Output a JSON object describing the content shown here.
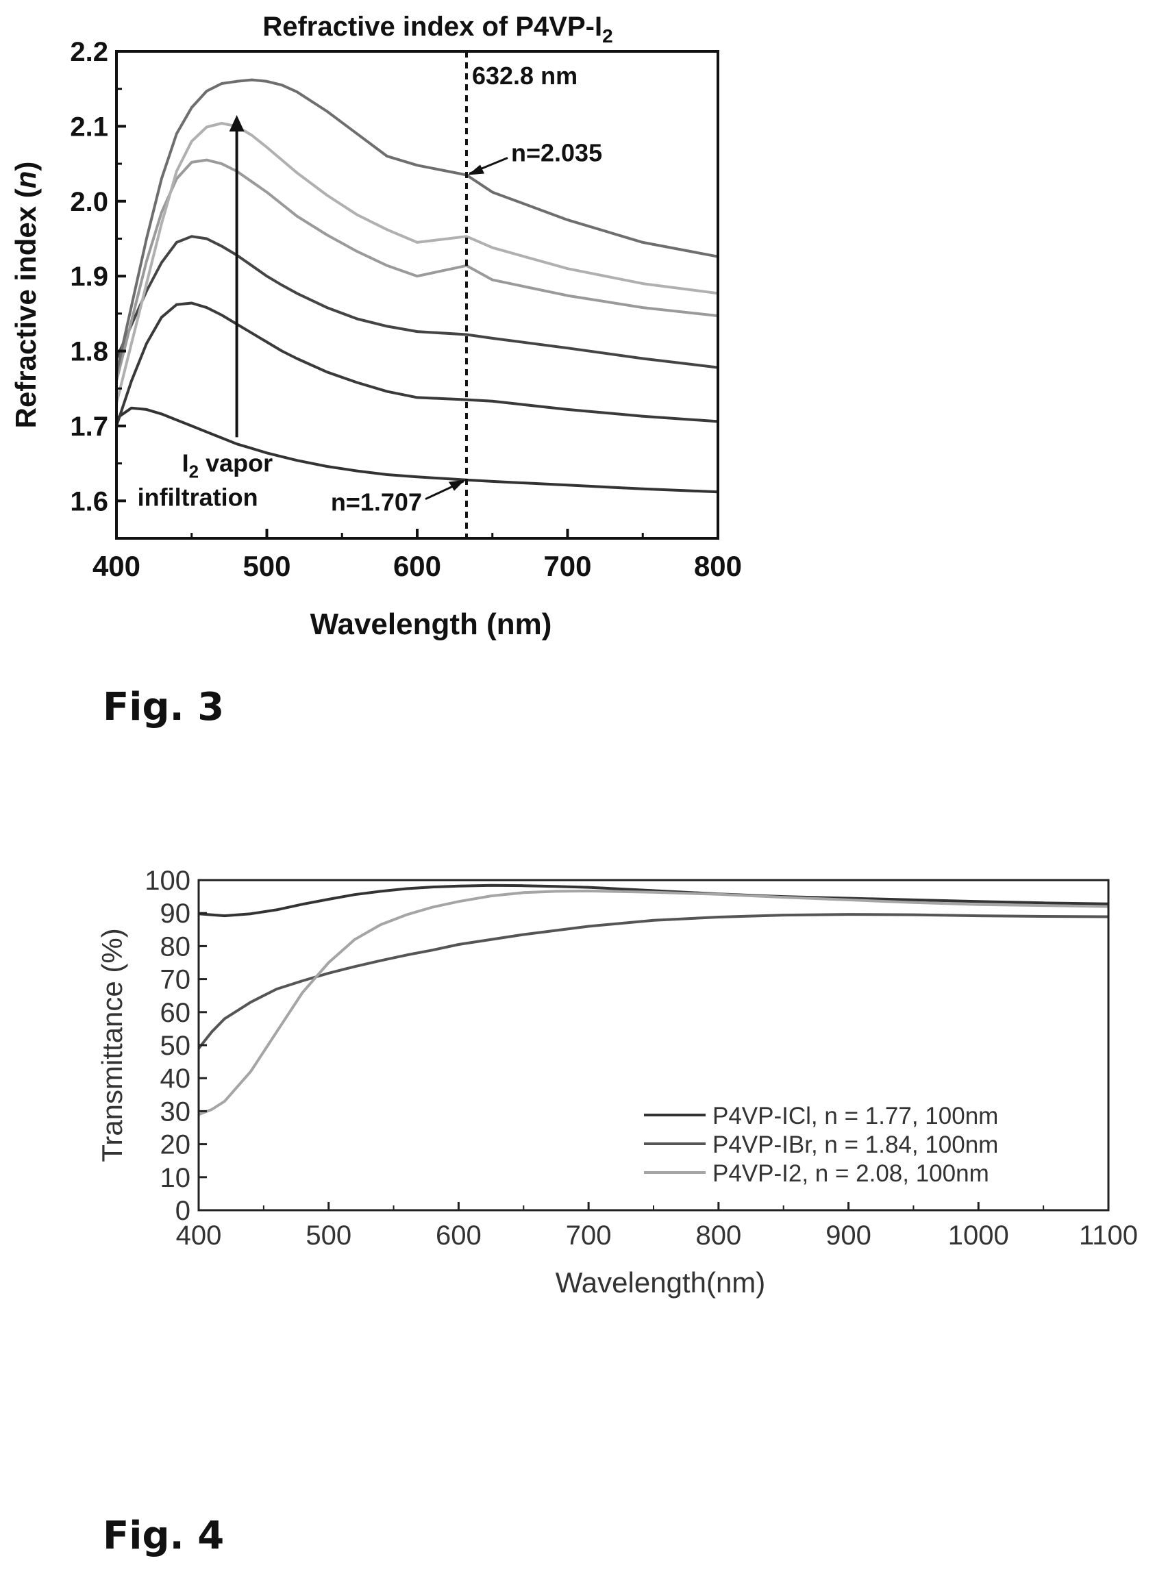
{
  "figures": [
    {
      "label": "Fig. 3"
    },
    {
      "label": "Fig. 4"
    }
  ],
  "chart_data": [
    {
      "type": "line",
      "title": "Refractive index of P4VP-I",
      "title_subscript": "2",
      "xlabel": "Wavelength (nm)",
      "ylabel": "Refractive index (",
      "ylabel_italic": "n",
      "ylabel_end": ")",
      "xlim": [
        400,
        800
      ],
      "ylim": [
        1.55,
        2.2
      ],
      "xticks": [
        "400",
        "500",
        "600",
        "700",
        "800"
      ],
      "yticks": [
        "1.6",
        "1.7",
        "1.8",
        "1.9",
        "2.0",
        "2.1",
        "2.2"
      ],
      "x": [
        400,
        410,
        420,
        430,
        440,
        450,
        460,
        470,
        480,
        490,
        500,
        510,
        520,
        540,
        560,
        580,
        600,
        632.8,
        650,
        700,
        750,
        800
      ],
      "series": [
        {
          "color": "#333333",
          "values": [
            1.71,
            1.724,
            1.722,
            1.716,
            1.708,
            1.7,
            1.692,
            1.684,
            1.676,
            1.67,
            1.664,
            1.659,
            1.654,
            1.646,
            1.64,
            1.635,
            1.632,
            1.628,
            1.626,
            1.621,
            1.616,
            1.612
          ]
        },
        {
          "color": "#3a3a3a",
          "values": [
            1.7,
            1.76,
            1.81,
            1.845,
            1.862,
            1.864,
            1.858,
            1.848,
            1.836,
            1.824,
            1.812,
            1.8,
            1.79,
            1.772,
            1.758,
            1.746,
            1.738,
            1.735,
            1.733,
            1.722,
            1.713,
            1.706
          ]
        },
        {
          "color": "#444444",
          "values": [
            1.79,
            1.835,
            1.88,
            1.918,
            1.945,
            1.953,
            1.95,
            1.94,
            1.928,
            1.914,
            1.9,
            1.888,
            1.877,
            1.858,
            1.843,
            1.833,
            1.826,
            1.822,
            1.817,
            1.804,
            1.79,
            1.778
          ]
        },
        {
          "color": "#9a9a9a",
          "values": [
            1.76,
            1.84,
            1.92,
            1.985,
            2.03,
            2.052,
            2.055,
            2.05,
            2.04,
            2.026,
            2.012,
            1.996,
            1.98,
            1.955,
            1.933,
            1.914,
            1.9,
            1.914,
            1.895,
            1.874,
            1.858,
            1.847
          ]
        },
        {
          "color": "#b0b0b0",
          "values": [
            1.73,
            1.81,
            1.89,
            1.97,
            2.04,
            2.08,
            2.099,
            2.104,
            2.1,
            2.088,
            2.072,
            2.055,
            2.038,
            2.008,
            1.982,
            1.962,
            1.945,
            1.953,
            1.938,
            1.91,
            1.89,
            1.877
          ]
        },
        {
          "color": "#6e6e6e",
          "values": [
            1.77,
            1.86,
            1.95,
            2.03,
            2.09,
            2.125,
            2.147,
            2.157,
            2.16,
            2.162,
            2.16,
            2.155,
            2.146,
            2.12,
            2.09,
            2.06,
            2.048,
            2.035,
            2.012,
            1.975,
            1.945,
            1.926
          ]
        }
      ],
      "vline": {
        "x": 632.8,
        "label": "632.8 nm"
      },
      "annotations": [
        {
          "text": "n=2.035",
          "x": 632.8,
          "y": 2.035
        },
        {
          "text": "n=1.707",
          "x": 632.8,
          "y": 1.628
        }
      ],
      "arrow": {
        "x": 480,
        "y_from": 1.685,
        "y_to": 2.115,
        "label_line1": "I",
        "label_line1_sub": "2",
        "label_line1_rest": " vapor",
        "label_line2": "infiltration"
      }
    },
    {
      "type": "line",
      "xlabel": "Wavelength(nm)",
      "ylabel": "Transmittance (%)",
      "xlim": [
        400,
        1100
      ],
      "ylim": [
        0,
        100
      ],
      "xticks": [
        "400",
        "500",
        "600",
        "700",
        "800",
        "900",
        "1000",
        "1100"
      ],
      "yticks": [
        "0",
        "10",
        "20",
        "30",
        "40",
        "50",
        "60",
        "70",
        "80",
        "90",
        "100"
      ],
      "legend_position": "center-right",
      "series": [
        {
          "name": "P4VP-ICl, n = 1.77, 100nm",
          "color": "#333333",
          "x": [
            400,
            420,
            440,
            460,
            480,
            500,
            520,
            540,
            560,
            580,
            600,
            625,
            650,
            675,
            700,
            750,
            800,
            850,
            900,
            950,
            1000,
            1050,
            1100
          ],
          "y": [
            89.8,
            89.2,
            89.8,
            91.0,
            92.7,
            94.2,
            95.6,
            96.6,
            97.4,
            97.9,
            98.2,
            98.4,
            98.3,
            98.1,
            97.8,
            96.8,
            95.8,
            95.0,
            94.5,
            94.0,
            93.5,
            93.1,
            92.8
          ]
        },
        {
          "name": "P4VP-IBr, n = 1.84, 100nm",
          "color": "#555555",
          "x": [
            400,
            410,
            420,
            440,
            460,
            480,
            500,
            520,
            540,
            560,
            580,
            600,
            650,
            700,
            750,
            800,
            850,
            900,
            950,
            1000,
            1050,
            1100
          ],
          "y": [
            49,
            54,
            58,
            63,
            67,
            69.5,
            71.8,
            73.8,
            75.6,
            77.3,
            78.8,
            80.5,
            83.5,
            86.0,
            87.8,
            88.8,
            89.4,
            89.6,
            89.5,
            89.2,
            89.0,
            88.9
          ]
        },
        {
          "name": "P4VP-I2, n = 2.08, 100nm",
          "color": "#a5a5a5",
          "x": [
            400,
            410,
            420,
            440,
            460,
            480,
            500,
            520,
            540,
            560,
            580,
            600,
            625,
            650,
            675,
            700,
            750,
            800,
            850,
            900,
            950,
            1000,
            1050,
            1100
          ],
          "y": [
            29,
            30.5,
            33,
            42,
            54,
            66,
            75,
            82,
            86.5,
            89.5,
            91.8,
            93.5,
            95.2,
            96.2,
            96.6,
            96.7,
            96.3,
            95.7,
            94.8,
            94.0,
            93.2,
            92.6,
            92.3,
            92.0
          ]
        }
      ]
    }
  ]
}
